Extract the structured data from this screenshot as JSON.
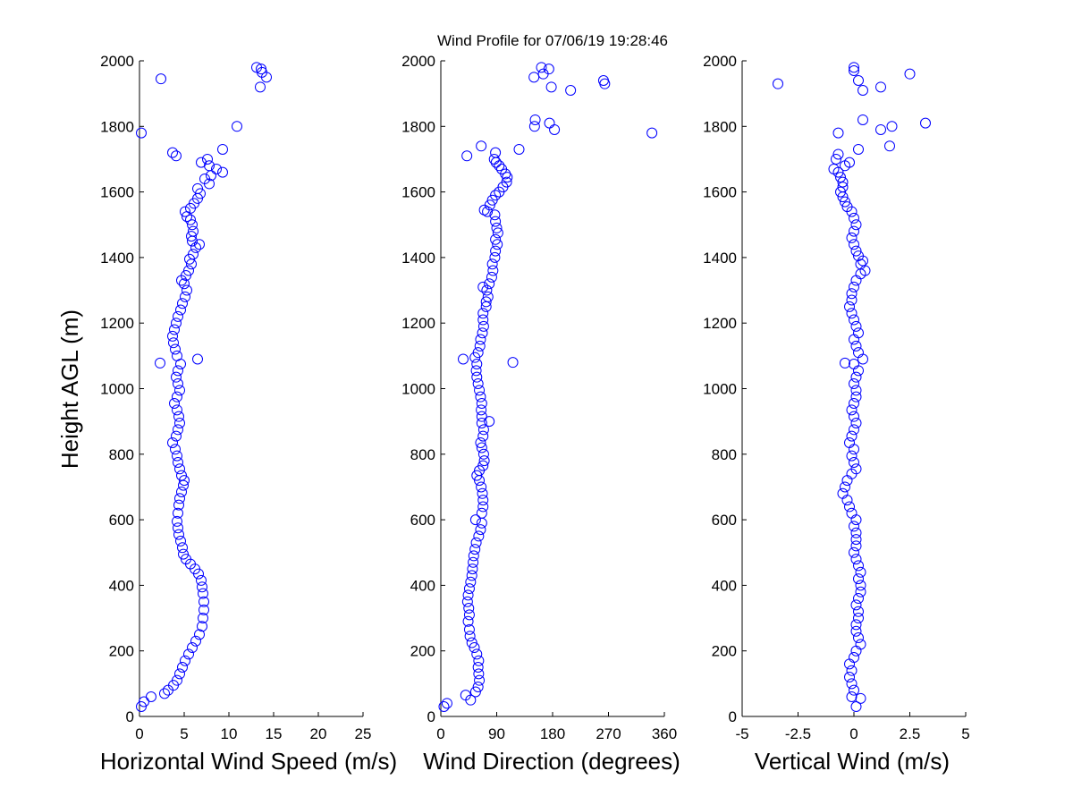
{
  "title": "Wind Profile for  07/06/19 19:28:46",
  "ylabel": "Height AGL (m)",
  "chart_data": [
    {
      "type": "scatter",
      "xlabel": "Horizontal Wind Speed (m/s)",
      "ylabel": "Height AGL (m)",
      "xlim": [
        0,
        25
      ],
      "ylim": [
        0,
        2000
      ],
      "xticks": [
        0,
        5,
        10,
        15,
        20,
        25
      ],
      "xtick_labels": [
        "0",
        "5",
        "10",
        "15",
        "20",
        "25"
      ],
      "yticks": [
        0,
        200,
        400,
        600,
        800,
        1000,
        1200,
        1400,
        1600,
        1800,
        2000
      ],
      "marker": "open-circle",
      "color": "#0000ff",
      "points": [
        [
          0.2,
          30
        ],
        [
          0.5,
          45
        ],
        [
          1.3,
          60
        ],
        [
          2.8,
          70
        ],
        [
          3.2,
          80
        ],
        [
          3.8,
          95
        ],
        [
          4.2,
          110
        ],
        [
          4.5,
          130
        ],
        [
          4.8,
          150
        ],
        [
          5.1,
          170
        ],
        [
          5.5,
          190
        ],
        [
          5.9,
          210
        ],
        [
          6.3,
          230
        ],
        [
          6.7,
          250
        ],
        [
          7.0,
          275
        ],
        [
          7.1,
          300
        ],
        [
          7.2,
          325
        ],
        [
          7.2,
          350
        ],
        [
          7.1,
          375
        ],
        [
          7.0,
          395
        ],
        [
          6.9,
          415
        ],
        [
          6.6,
          435
        ],
        [
          6.2,
          450
        ],
        [
          5.7,
          465
        ],
        [
          5.2,
          480
        ],
        [
          4.9,
          495
        ],
        [
          4.8,
          515
        ],
        [
          4.6,
          535
        ],
        [
          4.4,
          555
        ],
        [
          4.3,
          575
        ],
        [
          4.2,
          595
        ],
        [
          4.3,
          620
        ],
        [
          4.4,
          645
        ],
        [
          4.5,
          665
        ],
        [
          4.7,
          685
        ],
        [
          4.9,
          705
        ],
        [
          5.0,
          720
        ],
        [
          4.7,
          735
        ],
        [
          4.5,
          755
        ],
        [
          4.3,
          775
        ],
        [
          4.2,
          795
        ],
        [
          4.0,
          815
        ],
        [
          3.7,
          835
        ],
        [
          4.1,
          855
        ],
        [
          4.3,
          875
        ],
        [
          4.5,
          895
        ],
        [
          4.4,
          915
        ],
        [
          4.2,
          935
        ],
        [
          3.9,
          955
        ],
        [
          4.2,
          975
        ],
        [
          4.5,
          995
        ],
        [
          4.3,
          1015
        ],
        [
          4.1,
          1035
        ],
        [
          4.3,
          1055
        ],
        [
          4.6,
          1075
        ],
        [
          2.3,
          1078
        ],
        [
          6.5,
          1090
        ],
        [
          4.2,
          1100
        ],
        [
          4.0,
          1120
        ],
        [
          3.8,
          1140
        ],
        [
          3.7,
          1160
        ],
        [
          3.9,
          1180
        ],
        [
          4.1,
          1200
        ],
        [
          4.3,
          1220
        ],
        [
          4.6,
          1240
        ],
        [
          4.8,
          1260
        ],
        [
          5.1,
          1280
        ],
        [
          5.3,
          1300
        ],
        [
          5.0,
          1320
        ],
        [
          4.7,
          1330
        ],
        [
          5.2,
          1345
        ],
        [
          5.5,
          1360
        ],
        [
          5.8,
          1380
        ],
        [
          5.6,
          1395
        ],
        [
          6.0,
          1410
        ],
        [
          6.3,
          1430
        ],
        [
          6.7,
          1440
        ],
        [
          5.9,
          1450
        ],
        [
          5.8,
          1465
        ],
        [
          6.0,
          1480
        ],
        [
          5.9,
          1500
        ],
        [
          5.7,
          1515
        ],
        [
          5.3,
          1525
        ],
        [
          5.1,
          1540
        ],
        [
          5.7,
          1550
        ],
        [
          6.1,
          1565
        ],
        [
          6.5,
          1580
        ],
        [
          6.8,
          1595
        ],
        [
          6.5,
          1610
        ],
        [
          7.8,
          1625
        ],
        [
          7.3,
          1640
        ],
        [
          8.0,
          1650
        ],
        [
          9.3,
          1660
        ],
        [
          8.6,
          1670
        ],
        [
          7.8,
          1680
        ],
        [
          6.9,
          1690
        ],
        [
          7.6,
          1700
        ],
        [
          4.1,
          1710
        ],
        [
          3.7,
          1720
        ],
        [
          9.3,
          1730
        ],
        [
          0.2,
          1780
        ],
        [
          10.9,
          1800
        ],
        [
          2.4,
          1945
        ],
        [
          13.5,
          1920
        ],
        [
          14.2,
          1950
        ],
        [
          13.7,
          1965
        ],
        [
          13.1,
          1980
        ],
        [
          13.6,
          1975
        ]
      ]
    },
    {
      "type": "scatter",
      "xlabel": "Wind Direction (degrees)",
      "xlim": [
        0,
        360
      ],
      "ylim": [
        0,
        2000
      ],
      "xticks": [
        0,
        90,
        180,
        270,
        360
      ],
      "xtick_labels": [
        "0",
        "90",
        "180",
        "270",
        "360"
      ],
      "yticks": [
        0,
        200,
        400,
        600,
        800,
        1000,
        1200,
        1400,
        1600,
        1800,
        2000
      ],
      "marker": "open-circle",
      "color": "#0000ff",
      "points": [
        [
          5,
          30
        ],
        [
          10,
          40
        ],
        [
          48,
          50
        ],
        [
          40,
          65
        ],
        [
          56,
          75
        ],
        [
          60,
          90
        ],
        [
          62,
          110
        ],
        [
          61,
          130
        ],
        [
          60,
          150
        ],
        [
          61,
          170
        ],
        [
          58,
          190
        ],
        [
          54,
          210
        ],
        [
          50,
          225
        ],
        [
          47,
          245
        ],
        [
          46,
          265
        ],
        [
          44,
          290
        ],
        [
          46,
          310
        ],
        [
          45,
          330
        ],
        [
          43,
          350
        ],
        [
          44,
          370
        ],
        [
          46,
          390
        ],
        [
          48,
          410
        ],
        [
          50,
          430
        ],
        [
          51,
          450
        ],
        [
          52,
          470
        ],
        [
          53,
          490
        ],
        [
          55,
          510
        ],
        [
          57,
          530
        ],
        [
          61,
          550
        ],
        [
          64,
          570
        ],
        [
          66,
          590
        ],
        [
          56,
          600
        ],
        [
          66,
          620
        ],
        [
          68,
          640
        ],
        [
          68,
          660
        ],
        [
          67,
          680
        ],
        [
          65,
          700
        ],
        [
          62,
          720
        ],
        [
          58,
          735
        ],
        [
          62,
          750
        ],
        [
          68,
          765
        ],
        [
          70,
          780
        ],
        [
          69,
          800
        ],
        [
          66,
          820
        ],
        [
          64,
          835
        ],
        [
          68,
          855
        ],
        [
          69,
          875
        ],
        [
          66,
          895
        ],
        [
          78,
          900
        ],
        [
          66,
          915
        ],
        [
          65,
          935
        ],
        [
          66,
          955
        ],
        [
          64,
          975
        ],
        [
          62,
          995
        ],
        [
          60,
          1015
        ],
        [
          58,
          1035
        ],
        [
          57,
          1055
        ],
        [
          58,
          1075
        ],
        [
          36,
          1090
        ],
        [
          116,
          1080
        ],
        [
          55,
          1095
        ],
        [
          60,
          1110
        ],
        [
          63,
          1130
        ],
        [
          64,
          1150
        ],
        [
          67,
          1170
        ],
        [
          69,
          1190
        ],
        [
          68,
          1210
        ],
        [
          68,
          1230
        ],
        [
          73,
          1250
        ],
        [
          73,
          1265
        ],
        [
          76,
          1280
        ],
        [
          74,
          1300
        ],
        [
          68,
          1310
        ],
        [
          78,
          1320
        ],
        [
          82,
          1340
        ],
        [
          84,
          1360
        ],
        [
          83,
          1380
        ],
        [
          87,
          1400
        ],
        [
          88,
          1420
        ],
        [
          91,
          1440
        ],
        [
          88,
          1455
        ],
        [
          92,
          1475
        ],
        [
          90,
          1490
        ],
        [
          88,
          1510
        ],
        [
          87,
          1530
        ],
        [
          75,
          1540
        ],
        [
          70,
          1545
        ],
        [
          79,
          1560
        ],
        [
          83,
          1575
        ],
        [
          88,
          1590
        ],
        [
          94,
          1600
        ],
        [
          100,
          1615
        ],
        [
          106,
          1630
        ],
        [
          107,
          1645
        ],
        [
          104,
          1655
        ],
        [
          98,
          1670
        ],
        [
          94,
          1680
        ],
        [
          89,
          1690
        ],
        [
          86,
          1700
        ],
        [
          42,
          1710
        ],
        [
          88,
          1720
        ],
        [
          65,
          1740
        ],
        [
          126,
          1730
        ],
        [
          151,
          1800
        ],
        [
          152,
          1820
        ],
        [
          175,
          1810
        ],
        [
          183,
          1790
        ],
        [
          340,
          1780
        ],
        [
          150,
          1950
        ],
        [
          165,
          1960
        ],
        [
          162,
          1980
        ],
        [
          174,
          1975
        ],
        [
          178,
          1920
        ],
        [
          209,
          1910
        ],
        [
          262,
          1940
        ],
        [
          264,
          1930
        ]
      ]
    },
    {
      "type": "scatter",
      "xlabel": "Vertical Wind (m/s)",
      "xlim": [
        -5,
        5
      ],
      "ylim": [
        0,
        2000
      ],
      "xticks": [
        -5,
        -2.5,
        0,
        2.5,
        5
      ],
      "xtick_labels": [
        "-5",
        "-2.5",
        "0",
        "2.5",
        "5"
      ],
      "yticks": [
        0,
        200,
        400,
        600,
        800,
        1000,
        1200,
        1400,
        1600,
        1800,
        2000
      ],
      "marker": "open-circle",
      "color": "#0000ff",
      "points": [
        [
          0.1,
          30
        ],
        [
          0.3,
          55
        ],
        [
          -0.1,
          60
        ],
        [
          0.0,
          80
        ],
        [
          -0.1,
          100
        ],
        [
          -0.2,
          120
        ],
        [
          -0.1,
          140
        ],
        [
          -0.2,
          160
        ],
        [
          0.0,
          180
        ],
        [
          0.1,
          200
        ],
        [
          0.3,
          220
        ],
        [
          0.2,
          240
        ],
        [
          0.1,
          260
        ],
        [
          0.1,
          280
        ],
        [
          0.2,
          300
        ],
        [
          0.2,
          320
        ],
        [
          0.1,
          340
        ],
        [
          0.2,
          360
        ],
        [
          0.3,
          380
        ],
        [
          0.3,
          400
        ],
        [
          0.2,
          420
        ],
        [
          0.3,
          440
        ],
        [
          0.2,
          460
        ],
        [
          0.1,
          480
        ],
        [
          0.0,
          500
        ],
        [
          0.1,
          520
        ],
        [
          0.1,
          540
        ],
        [
          0.1,
          560
        ],
        [
          0.0,
          580
        ],
        [
          0.1,
          600
        ],
        [
          -0.1,
          620
        ],
        [
          -0.2,
          640
        ],
        [
          -0.3,
          660
        ],
        [
          -0.5,
          680
        ],
        [
          -0.4,
          700
        ],
        [
          -0.3,
          720
        ],
        [
          -0.1,
          740
        ],
        [
          0.1,
          755
        ],
        [
          0.0,
          775
        ],
        [
          -0.1,
          795
        ],
        [
          0.0,
          815
        ],
        [
          -0.2,
          835
        ],
        [
          -0.1,
          855
        ],
        [
          0.0,
          875
        ],
        [
          0.1,
          895
        ],
        [
          0.0,
          915
        ],
        [
          -0.1,
          935
        ],
        [
          0.0,
          955
        ],
        [
          0.1,
          975
        ],
        [
          0.1,
          995
        ],
        [
          0.0,
          1015
        ],
        [
          0.1,
          1035
        ],
        [
          0.2,
          1055
        ],
        [
          0.0,
          1075
        ],
        [
          -0.4,
          1078
        ],
        [
          0.4,
          1090
        ],
        [
          0.2,
          1110
        ],
        [
          0.1,
          1130
        ],
        [
          0.0,
          1150
        ],
        [
          0.2,
          1170
        ],
        [
          0.1,
          1190
        ],
        [
          0.0,
          1210
        ],
        [
          -0.1,
          1230
        ],
        [
          -0.2,
          1250
        ],
        [
          -0.1,
          1270
        ],
        [
          -0.1,
          1290
        ],
        [
          0.0,
          1310
        ],
        [
          0.1,
          1330
        ],
        [
          0.3,
          1350
        ],
        [
          0.5,
          1360
        ],
        [
          0.3,
          1380
        ],
        [
          0.4,
          1390
        ],
        [
          0.2,
          1405
        ],
        [
          0.1,
          1420
        ],
        [
          0.0,
          1440
        ],
        [
          -0.1,
          1460
        ],
        [
          0.0,
          1480
        ],
        [
          0.1,
          1500
        ],
        [
          0.0,
          1520
        ],
        [
          -0.1,
          1540
        ],
        [
          -0.3,
          1555
        ],
        [
          -0.4,
          1570
        ],
        [
          -0.5,
          1585
        ],
        [
          -0.6,
          1600
        ],
        [
          -0.5,
          1615
        ],
        [
          -0.5,
          1630
        ],
        [
          -0.6,
          1645
        ],
        [
          -0.7,
          1660
        ],
        [
          -0.9,
          1670
        ],
        [
          -0.4,
          1680
        ],
        [
          -0.2,
          1690
        ],
        [
          -0.8,
          1700
        ],
        [
          -0.7,
          1715
        ],
        [
          0.2,
          1730
        ],
        [
          1.6,
          1740
        ],
        [
          -0.7,
          1780
        ],
        [
          1.2,
          1790
        ],
        [
          1.7,
          1800
        ],
        [
          3.2,
          1810
        ],
        [
          0.4,
          1820
        ],
        [
          -3.4,
          1930
        ],
        [
          0.2,
          1940
        ],
        [
          0.4,
          1910
        ],
        [
          1.2,
          1920
        ],
        [
          2.5,
          1960
        ],
        [
          0.0,
          1970
        ],
        [
          0.0,
          1980
        ]
      ]
    }
  ]
}
